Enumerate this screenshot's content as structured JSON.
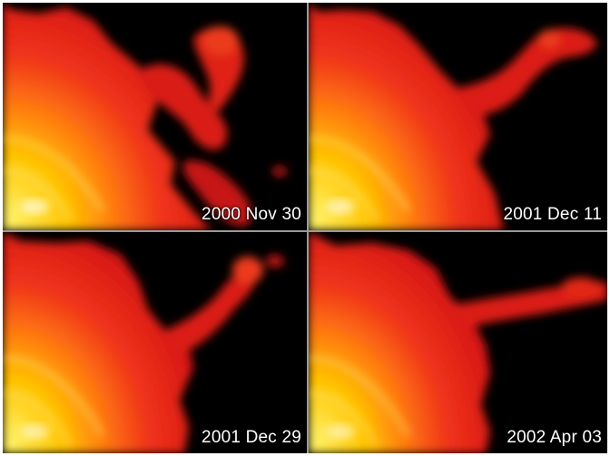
{
  "panels": [
    {
      "date": "2000 Nov 30",
      "feature": "loop"
    },
    {
      "date": "2001 Dec 11",
      "feature": "arm-upper"
    },
    {
      "date": "2001 Dec 29",
      "feature": "arm-blob"
    },
    {
      "date": "2002 Apr 03",
      "feature": "arm-flat"
    }
  ],
  "colors": {
    "background": "#000000",
    "corona_outer": "#e0201a",
    "corona_mid": "#ff5a14",
    "corona_inner": "#ffb400",
    "core": "#fff36a",
    "divider": "#9a9a9a"
  }
}
